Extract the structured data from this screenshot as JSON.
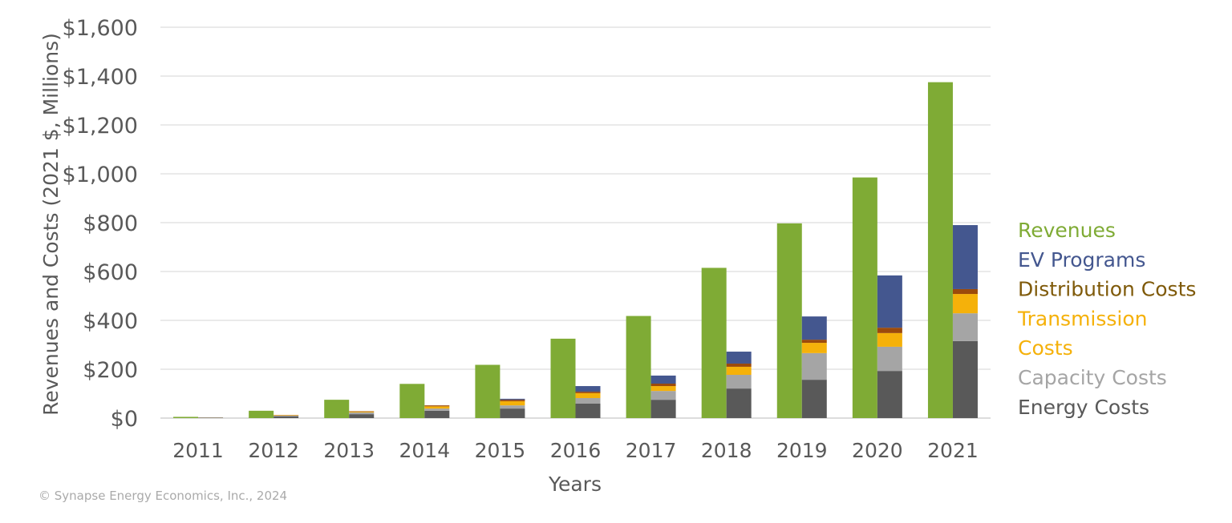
{
  "chart_data": {
    "type": "bar",
    "stacked_costs": true,
    "xlabel": "Years",
    "ylabel": "Revenues and Costs (2021 $, Millions)",
    "ylim": [
      0,
      1600
    ],
    "yticks": [
      0,
      200,
      400,
      600,
      800,
      1000,
      1200,
      1400,
      1600
    ],
    "ytick_labels": [
      "$0",
      "$200",
      "$400",
      "$600",
      "$800",
      "$1,000",
      "$1,200",
      "$1,400",
      "$1,600"
    ],
    "grid": true,
    "legend_position": "right",
    "categories": [
      "2011",
      "2012",
      "2013",
      "2014",
      "2015",
      "2016",
      "2017",
      "2018",
      "2019",
      "2020",
      "2021"
    ],
    "revenues": {
      "name": "Revenues",
      "color": "#7fab35",
      "values": [
        5,
        30,
        75,
        140,
        218,
        325,
        418,
        615,
        797,
        985,
        1375
      ]
    },
    "cost_series": [
      {
        "name": "Energy Costs",
        "color": "#595959",
        "values": [
          1.5,
          7,
          16,
          30,
          39,
          59,
          75,
          121,
          157,
          193,
          315
        ]
      },
      {
        "name": "Capacity Costs",
        "color": "#a5a5a5",
        "values": [
          0.5,
          3,
          7,
          9,
          13,
          23,
          36,
          56,
          109,
          99,
          114
        ]
      },
      {
        "name": "Transmission Costs",
        "color": "#f5b10a",
        "values": [
          0.3,
          2,
          3,
          9,
          17,
          20,
          20,
          33,
          42,
          56,
          79
        ]
      },
      {
        "name": "Distribution Costs",
        "color": "#9c4a0b",
        "values": [
          0.2,
          1,
          2,
          4,
          6,
          6,
          10,
          13,
          13,
          22,
          20
        ]
      },
      {
        "name": "EV Programs",
        "color": "#44578f",
        "values": [
          0,
          0,
          0,
          0,
          4,
          23,
          33,
          49,
          95,
          214,
          262
        ]
      }
    ],
    "legend": [
      {
        "label": "Revenues",
        "color": "#7fab35"
      },
      {
        "label": "EV Programs",
        "color": "#44578f"
      },
      {
        "label": "Distribution Costs",
        "color": "#7f5a0a"
      },
      {
        "label": "Transmission",
        "color": "#f5b10a"
      },
      {
        "label": "Costs",
        "color": "#f5b10a"
      },
      {
        "label": "Capacity Costs",
        "color": "#a5a5a5"
      },
      {
        "label": "Energy Costs",
        "color": "#595959"
      }
    ]
  },
  "copyright": "© Synapse Energy Economics, Inc., 2024"
}
